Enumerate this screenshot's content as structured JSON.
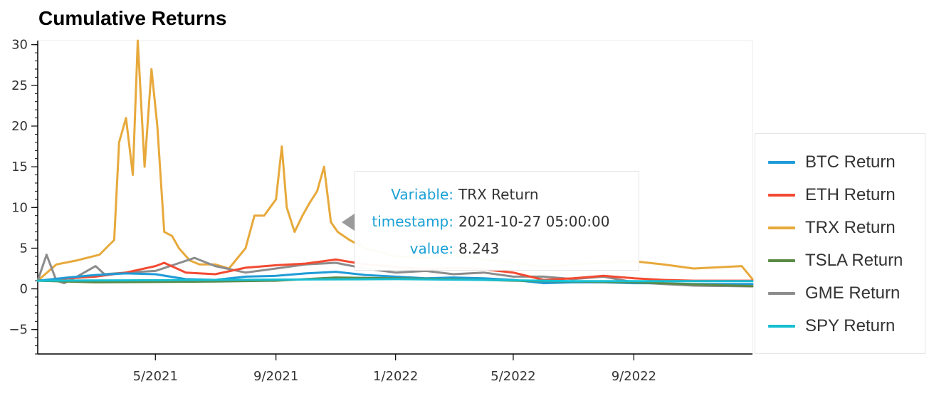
{
  "chart_data": {
    "type": "line",
    "title": "Cumulative Returns",
    "xlabel": "",
    "ylabel": "",
    "ylim": [
      -8,
      30.5
    ],
    "xlim": [
      "2021-01-01",
      "2022-12-31"
    ],
    "yticks": [
      -5,
      0,
      5,
      10,
      15,
      20,
      25,
      30
    ],
    "ytick_labels": [
      "−5",
      "0",
      "5",
      "10",
      "15",
      "20",
      "25",
      "30"
    ],
    "xticks": [
      "2021-05-01",
      "2021-09-01",
      "2022-01-01",
      "2022-05-01",
      "2022-09-01"
    ],
    "xtick_labels": [
      "5/2021",
      "9/2021",
      "1/2022",
      "5/2022",
      "9/2022"
    ],
    "grid": false,
    "legend_position": "right",
    "series": [
      {
        "name": "BTC Return",
        "color": "#1f9bd7",
        "x": [
          "2021-01-01",
          "2021-02-01",
          "2021-03-01",
          "2021-04-01",
          "2021-05-01",
          "2021-06-01",
          "2021-07-01",
          "2021-08-01",
          "2021-09-01",
          "2021-10-01",
          "2021-11-01",
          "2021-12-01",
          "2022-01-01",
          "2022-02-01",
          "2022-03-01",
          "2022-04-01",
          "2022-05-01",
          "2022-06-01",
          "2022-07-01",
          "2022-08-01",
          "2022-09-01",
          "2022-10-01",
          "2022-11-01",
          "2022-12-31"
        ],
        "values": [
          1.0,
          1.4,
          1.7,
          1.9,
          1.8,
          1.2,
          1.1,
          1.5,
          1.6,
          1.9,
          2.1,
          1.7,
          1.5,
          1.3,
          1.4,
          1.3,
          1.1,
          0.7,
          0.8,
          0.8,
          0.7,
          0.7,
          0.6,
          0.6
        ]
      },
      {
        "name": "ETH Return",
        "color": "#f24a32",
        "x": [
          "2021-01-01",
          "2021-02-01",
          "2021-03-01",
          "2021-04-01",
          "2021-05-01",
          "2021-05-10",
          "2021-06-01",
          "2021-07-01",
          "2021-08-01",
          "2021-09-01",
          "2021-10-01",
          "2021-11-01",
          "2021-12-01",
          "2022-01-01",
          "2022-02-01",
          "2022-03-01",
          "2022-04-01",
          "2022-05-01",
          "2022-06-01",
          "2022-07-01",
          "2022-08-01",
          "2022-09-01",
          "2022-10-01",
          "2022-11-01",
          "2022-12-31"
        ],
        "values": [
          1.0,
          1.3,
          1.5,
          2.0,
          2.8,
          3.2,
          2.0,
          1.8,
          2.6,
          2.9,
          3.1,
          3.6,
          3.0,
          2.7,
          2.4,
          2.6,
          2.4,
          2.0,
          1.1,
          1.3,
          1.6,
          1.3,
          1.1,
          1.0,
          1.0
        ]
      },
      {
        "name": "TRX Return",
        "color": "#e7a93b",
        "x": [
          "2021-01-01",
          "2021-01-20",
          "2021-02-10",
          "2021-03-05",
          "2021-03-20",
          "2021-03-25",
          "2021-04-01",
          "2021-04-08",
          "2021-04-13",
          "2021-04-20",
          "2021-04-27",
          "2021-05-03",
          "2021-05-10",
          "2021-05-18",
          "2021-05-25",
          "2021-06-05",
          "2021-06-15",
          "2021-07-01",
          "2021-07-15",
          "2021-08-01",
          "2021-08-10",
          "2021-08-20",
          "2021-09-01",
          "2021-09-07",
          "2021-09-12",
          "2021-09-20",
          "2021-09-28",
          "2021-10-05",
          "2021-10-13",
          "2021-10-20",
          "2021-10-27",
          "2021-11-03",
          "2021-11-15",
          "2021-12-01",
          "2022-01-01",
          "2022-02-01",
          "2022-03-01",
          "2022-04-01",
          "2022-05-01",
          "2022-06-01",
          "2022-07-01",
          "2022-08-01",
          "2022-09-01",
          "2022-10-01",
          "2022-11-01",
          "2022-12-20",
          "2022-12-31"
        ],
        "values": [
          1.0,
          3.0,
          3.5,
          4.2,
          6.0,
          18.0,
          21.0,
          14.0,
          30.5,
          15.0,
          27.0,
          20.0,
          7.0,
          6.5,
          5.0,
          3.5,
          3.0,
          3.0,
          2.5,
          5.0,
          9.0,
          9.0,
          11.0,
          17.5,
          10.0,
          7.0,
          9.0,
          10.5,
          12.0,
          15.0,
          8.2,
          7.0,
          6.0,
          5.0,
          4.0,
          3.8,
          4.2,
          3.6,
          3.2,
          2.7,
          3.0,
          3.2,
          3.4,
          3.0,
          2.5,
          2.8,
          1.2
        ]
      },
      {
        "name": "TSLA Return",
        "color": "#5b8a46",
        "x": [
          "2021-01-01",
          "2021-03-01",
          "2021-05-01",
          "2021-07-01",
          "2021-09-01",
          "2021-11-01",
          "2022-01-01",
          "2022-03-01",
          "2022-05-01",
          "2022-07-01",
          "2022-09-01",
          "2022-11-01",
          "2022-12-31"
        ],
        "values": [
          1.0,
          0.8,
          0.85,
          0.9,
          1.0,
          1.4,
          1.3,
          1.2,
          1.0,
          0.9,
          0.8,
          0.55,
          0.35
        ]
      },
      {
        "name": "GME Return",
        "color": "#8c8c8c",
        "x": [
          "2021-01-01",
          "2021-01-10",
          "2021-01-20",
          "2021-01-28",
          "2021-02-10",
          "2021-03-01",
          "2021-03-10",
          "2021-04-01",
          "2021-05-01",
          "2021-06-10",
          "2021-07-01",
          "2021-08-01",
          "2021-09-01",
          "2021-10-01",
          "2021-11-01",
          "2021-12-01",
          "2022-01-01",
          "2022-02-01",
          "2022-03-01",
          "2022-04-01",
          "2022-05-01",
          "2022-06-01",
          "2022-07-01",
          "2022-08-01",
          "2022-09-01",
          "2022-10-01",
          "2022-11-01",
          "2022-12-31"
        ],
        "values": [
          1.0,
          4.2,
          1.0,
          0.7,
          1.5,
          2.8,
          1.8,
          2.0,
          2.2,
          3.8,
          2.8,
          2.0,
          2.5,
          3.0,
          3.2,
          2.5,
          2.0,
          2.2,
          1.8,
          2.0,
          1.5,
          1.5,
          1.2,
          1.5,
          0.8,
          0.6,
          0.4,
          0.3
        ]
      },
      {
        "name": "SPY Return",
        "color": "#17bfd3",
        "x": [
          "2021-01-01",
          "2021-04-01",
          "2021-07-01",
          "2021-10-01",
          "2022-01-01",
          "2022-04-01",
          "2022-07-01",
          "2022-10-01",
          "2022-12-31"
        ],
        "values": [
          1.0,
          1.05,
          1.1,
          1.15,
          1.2,
          1.1,
          0.95,
          0.95,
          0.95
        ]
      }
    ]
  },
  "tooltip": {
    "keys": [
      "Variable:",
      "timestamp:",
      "value:"
    ],
    "values": [
      "TRX Return",
      "2021-10-27 05:00:00",
      "8.243"
    ]
  }
}
